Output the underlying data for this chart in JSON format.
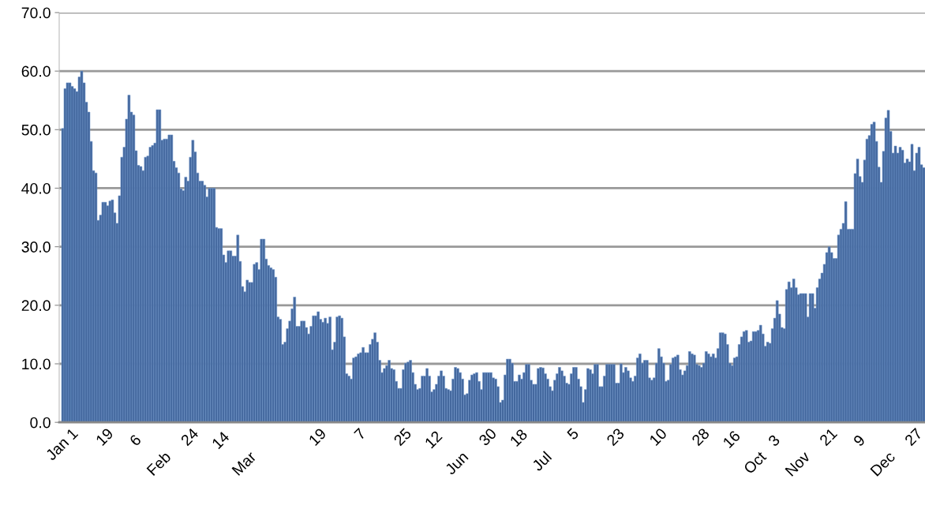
{
  "chart_data": {
    "type": "bar",
    "categories": [
      "Jan 1",
      null,
      null,
      null,
      null,
      null,
      null,
      null,
      null,
      null,
      null,
      null,
      null,
      null,
      null,
      null,
      null,
      null,
      "19",
      null,
      null,
      null,
      null,
      null,
      null,
      null,
      null,
      null,
      null,
      null,
      null,
      null,
      null,
      null,
      null,
      null,
      "6\n\nFeb",
      null,
      null,
      null,
      null,
      null,
      null,
      null,
      null,
      null,
      null,
      null,
      null,
      null,
      null,
      null,
      null,
      null,
      "24",
      null,
      null,
      null,
      null,
      null,
      null,
      null,
      null,
      null,
      null,
      null,
      null,
      null,
      null,
      null,
      null,
      null,
      "14\n\nMar",
      null,
      null,
      null,
      null,
      null,
      null,
      null,
      null,
      null,
      null,
      null,
      null,
      null,
      null,
      null,
      null,
      null,
      null,
      null,
      null,
      null,
      null,
      null,
      null,
      null,
      null,
      null,
      null,
      null,
      null,
      null,
      null,
      null,
      null,
      null,
      "19",
      null,
      null,
      null,
      null,
      null,
      null,
      null,
      null,
      null,
      null,
      null,
      null,
      null,
      null,
      null,
      null,
      null,
      "7",
      null,
      null,
      null,
      null,
      null,
      null,
      null,
      null,
      null,
      null,
      null,
      null,
      null,
      null,
      null,
      null,
      null,
      "25",
      null,
      null,
      null,
      null,
      null,
      null,
      null,
      null,
      null,
      null,
      null,
      null,
      null,
      null,
      null,
      null,
      null,
      "12\n\nJun",
      null,
      null,
      null,
      null,
      null,
      null,
      null,
      null,
      null,
      null,
      null,
      null,
      null,
      null,
      null,
      null,
      null,
      "30",
      null,
      null,
      null,
      null,
      null,
      null,
      null,
      null,
      null,
      null,
      null,
      null,
      null,
      null,
      null,
      null,
      null,
      "18\n\nJul",
      null,
      null,
      null,
      null,
      null,
      null,
      null,
      null,
      null,
      null,
      null,
      null,
      null,
      null,
      null,
      null,
      null,
      "5",
      null,
      null,
      null,
      null,
      null,
      null,
      null,
      null,
      null,
      null,
      null,
      null,
      null,
      null,
      null,
      null,
      null,
      "23",
      null,
      null,
      null,
      null,
      null,
      null,
      null,
      null,
      null,
      null,
      null,
      null,
      null,
      null,
      null,
      null,
      null,
      "10",
      null,
      null,
      null,
      null,
      null,
      null,
      null,
      null,
      null,
      null,
      null,
      null,
      null,
      null,
      null,
      null,
      null,
      "28",
      null,
      null,
      null,
      null,
      null,
      null,
      null,
      null,
      null,
      null,
      null,
      null,
      null,
      null,
      null,
      null,
      null,
      "16\n\nOct",
      null,
      null,
      null,
      null,
      null,
      null,
      null,
      null,
      null,
      null,
      null,
      null,
      null,
      null,
      null,
      null,
      null,
      "3\n\nNov",
      null,
      null,
      null,
      null,
      null,
      null,
      null,
      null,
      null,
      null,
      null,
      null,
      null,
      null,
      null,
      null,
      null,
      "21",
      null,
      null,
      null,
      null,
      null,
      null,
      null,
      null,
      null,
      null,
      null,
      null,
      null,
      null,
      null,
      null,
      null,
      "9\n\nDec",
      null,
      null,
      null,
      null,
      null,
      null,
      null,
      null,
      null,
      null,
      null,
      null,
      null,
      null,
      null,
      null,
      null,
      "27",
      null,
      null,
      null,
      null
    ],
    "color": "#44689e",
    "values": [
      50.2,
      57,
      58,
      58,
      57.4,
      57,
      56.5,
      59,
      60,
      58,
      54.7,
      53,
      48,
      43,
      42.6,
      34.5,
      35.4,
      37.6,
      37.6,
      37,
      37.8,
      38,
      35.8,
      34,
      38.7,
      45.3,
      47,
      51.8,
      55.9,
      53,
      52.5,
      46.4,
      43.9,
      43.7,
      43,
      45.3,
      45.5,
      47,
      47.3,
      47.7,
      53.4,
      53.4,
      48.2,
      48.4,
      48.4,
      49.1,
      49.1,
      44.6,
      43.5,
      42.6,
      39.9,
      39.6,
      41.9,
      41.2,
      45.3,
      48.2,
      46.2,
      42.6,
      41.2,
      41.2,
      40.5,
      38.5,
      40,
      40,
      40,
      33.3,
      33.1,
      33.1,
      28.6,
      27.3,
      29.3,
      29.3,
      28.4,
      28.4,
      32,
      27.5,
      23.2,
      22.3,
      24.3,
      23.9,
      23.9,
      27,
      27.3,
      26.1,
      31.3,
      31.3,
      27.9,
      26.8,
      26.4,
      26.1,
      24.8,
      18,
      17.6,
      13.3,
      13.7,
      16,
      17.3,
      19.4,
      21.4,
      16.4,
      16.4,
      17.3,
      17.3,
      16.2,
      15.1,
      16.4,
      18.2,
      18.2,
      18.9,
      17.6,
      17.1,
      17.8,
      16.9,
      18,
      12.4,
      13.7,
      18,
      18.2,
      17.8,
      14.6,
      8.3,
      7.9,
      7.4,
      11,
      11.2,
      11.7,
      11.9,
      12.8,
      11.9,
      11.9,
      13.3,
      14.2,
      15.3,
      13.7,
      10.6,
      8.5,
      9.2,
      9.7,
      10.6,
      9.2,
      9,
      7,
      5.8,
      5.8,
      9,
      10.1,
      10.3,
      10.6,
      8.5,
      6.5,
      5.6,
      5.8,
      7.9,
      7.9,
      9.2,
      7.9,
      5.2,
      5.6,
      6.5,
      7.9,
      8.8,
      7.9,
      5.8,
      5.6,
      5.4,
      7.4,
      9.4,
      9.2,
      8.5,
      7.4,
      4.7,
      4.9,
      7.2,
      8.1,
      8.3,
      8.5,
      7,
      5.6,
      8.5,
      8.5,
      8.5,
      8.5,
      7.6,
      7.4,
      6.1,
      3.4,
      3.8,
      8.1,
      10.8,
      10.8,
      10.1,
      7,
      7,
      8.1,
      7.4,
      8.5,
      9.9,
      9.9,
      7.2,
      6.5,
      6.5,
      9.2,
      9.4,
      9.3,
      8.3,
      7.4,
      6.1,
      5.4,
      7.2,
      8.3,
      9.4,
      8.8,
      7.9,
      6.7,
      6.5,
      8.3,
      9.4,
      9.4,
      7.4,
      6.1,
      3.4,
      5.6,
      9.2,
      9,
      8.3,
      9.9,
      9.9,
      6.1,
      6.1,
      7.9,
      9.9,
      9.9,
      9.9,
      9.9,
      6.7,
      6.7,
      10,
      8.5,
      9.4,
      8.8,
      7.6,
      7,
      7.9,
      11,
      11.7,
      10.1,
      10.6,
      10.6,
      7.6,
      7.2,
      7.6,
      10.1,
      12.6,
      11.2,
      10.1,
      7,
      7.2,
      9.9,
      11,
      11.2,
      11.5,
      9,
      8.1,
      8.8,
      9.7,
      12.1,
      11.7,
      11.5,
      9.9,
      9.7,
      9.4,
      10.1,
      12.1,
      11.7,
      11.2,
      11.7,
      11,
      12.6,
      15.3,
      15.3,
      15.1,
      13.3,
      10.1,
      9.7,
      11,
      11.2,
      13.3,
      14.6,
      15.5,
      15.7,
      13.7,
      13.9,
      15.5,
      15.5,
      15.7,
      16.6,
      15.1,
      13,
      13.7,
      13.5,
      16,
      17.8,
      20.8,
      18.5,
      16.2,
      16,
      22.7,
      24,
      23,
      24.5,
      23,
      21.8,
      22,
      22,
      22,
      18,
      22,
      22,
      19.5,
      23,
      24.5,
      25.5,
      27,
      29,
      30,
      29,
      28,
      28,
      32,
      33,
      34,
      37.7,
      33,
      33,
      33,
      42.5,
      45,
      42,
      41,
      44.8,
      48.4,
      49,
      50.9,
      51.3,
      48,
      43.6,
      41,
      46.3,
      52,
      53.3,
      49.7,
      46,
      47.2,
      46,
      47,
      46.5,
      44.3,
      45,
      44.5,
      47.5,
      43,
      46,
      47,
      44,
      43.5
    ],
    "ylim": [
      0,
      70
    ],
    "yticks": [
      {
        "value": 0,
        "label": "0.0"
      },
      {
        "value": 10,
        "label": "10.0"
      },
      {
        "value": 20,
        "label": "20.0"
      },
      {
        "value": 30,
        "label": "30.0"
      },
      {
        "value": 40,
        "label": "40.0"
      },
      {
        "value": 50,
        "label": "50.0"
      },
      {
        "value": 60,
        "label": "60.0"
      },
      {
        "value": 70,
        "label": "70.0"
      }
    ],
    "grid": "y",
    "legend": false
  }
}
